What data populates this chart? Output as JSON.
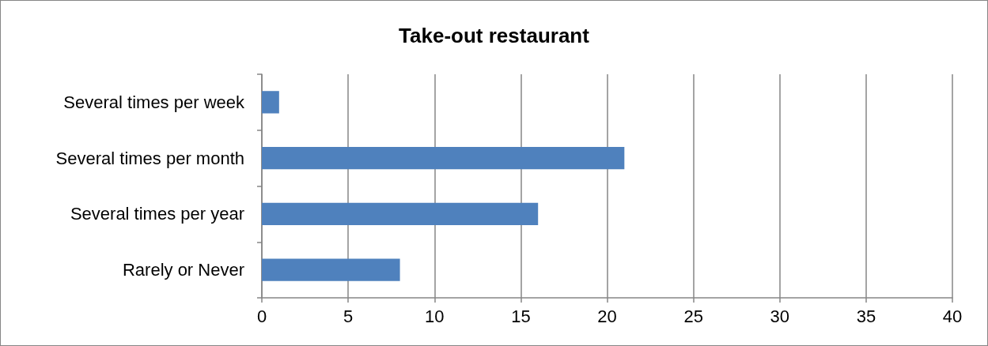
{
  "chart_data": {
    "type": "bar",
    "title": "Take-out restaurant",
    "orientation": "horizontal",
    "categories": [
      "Several times per week",
      "Several times per month",
      "Several times per year",
      "Rarely or Never"
    ],
    "values": [
      1,
      21,
      16,
      8
    ],
    "color": "#4f81bd",
    "xlim": [
      0,
      40
    ],
    "xticks": [
      0,
      5,
      10,
      15,
      20,
      25,
      30,
      35,
      40
    ],
    "grid": "x"
  }
}
